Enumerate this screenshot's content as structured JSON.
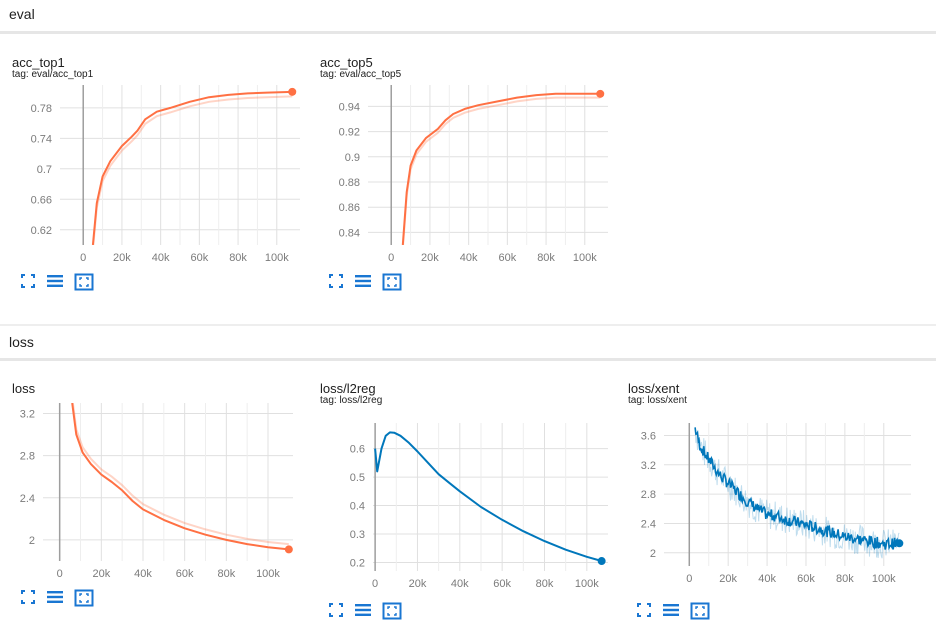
{
  "sections": [
    {
      "title": "eval"
    },
    {
      "title": "loss"
    }
  ],
  "colors": {
    "orange": "#ff7043",
    "blue": "#0077bb",
    "grid": "#e0e0e0",
    "axis": "#9e9e9e"
  },
  "toolbar_icons": [
    "expand-icon",
    "data-list-icon",
    "fit-domain-icon"
  ],
  "chart_data": [
    {
      "id": "acc_top1",
      "type": "line",
      "title": "acc_top1",
      "tag": "tag: eval/acc_top1",
      "color": "#ff7043",
      "ylim": [
        0.6,
        0.81
      ],
      "xlim": [
        -12000,
        112000
      ],
      "yticks": [
        0.62,
        0.66,
        0.7,
        0.74,
        0.78
      ],
      "ytick_labels": [
        "0.62",
        "0.66",
        "0.7",
        "0.74",
        "0.78"
      ],
      "xticks": [
        0,
        20000,
        40000,
        60000,
        80000,
        100000
      ],
      "xtick_labels": [
        "0",
        "20k",
        "40k",
        "60k",
        "80k",
        "100k"
      ],
      "raw_offset": -0.006,
      "series": [
        {
          "x": [
            5000,
            7000,
            10000,
            14000,
            20000,
            25000,
            28000,
            32000,
            38000,
            45000,
            55000,
            65000,
            75000,
            85000,
            95000,
            108000
          ],
          "y": [
            0.6,
            0.655,
            0.69,
            0.71,
            0.73,
            0.742,
            0.75,
            0.765,
            0.775,
            0.78,
            0.788,
            0.794,
            0.797,
            0.799,
            0.8,
            0.801
          ]
        }
      ]
    },
    {
      "id": "acc_top5",
      "type": "line",
      "title": "acc_top5",
      "tag": "tag: eval/acc_top5",
      "color": "#ff7043",
      "ylim": [
        0.83,
        0.957
      ],
      "xlim": [
        -12000,
        112000
      ],
      "yticks": [
        0.84,
        0.86,
        0.88,
        0.9,
        0.92,
        0.94
      ],
      "ytick_labels": [
        "0.84",
        "0.86",
        "0.88",
        "0.9",
        "0.92",
        "0.94"
      ],
      "xticks": [
        0,
        20000,
        40000,
        60000,
        80000,
        100000
      ],
      "xtick_labels": [
        "0",
        "20k",
        "40k",
        "60k",
        "80k",
        "100k"
      ],
      "raw_offset": -0.003,
      "series": [
        {
          "x": [
            6000,
            8000,
            10000,
            13000,
            18000,
            24000,
            28000,
            32000,
            38000,
            45000,
            55000,
            65000,
            75000,
            85000,
            95000,
            108000
          ],
          "y": [
            0.83,
            0.872,
            0.893,
            0.905,
            0.915,
            0.922,
            0.929,
            0.934,
            0.938,
            0.941,
            0.944,
            0.947,
            0.949,
            0.95,
            0.95,
            0.95
          ]
        }
      ]
    },
    {
      "id": "loss",
      "type": "line",
      "title": "loss",
      "tag": "",
      "color": "#ff7043",
      "ylim": [
        1.8,
        3.3
      ],
      "xlim": [
        -8000,
        112000
      ],
      "yticks": [
        2,
        2.4,
        2.8,
        3.2
      ],
      "ytick_labels": [
        "2",
        "2.4",
        "2.8",
        "3.2"
      ],
      "xticks": [
        0,
        20000,
        40000,
        60000,
        80000,
        100000
      ],
      "xtick_labels": [
        "0",
        "20k",
        "40k",
        "60k",
        "80k",
        "100k"
      ],
      "raw_offset": 0.05,
      "series": [
        {
          "x": [
            6000,
            8000,
            11000,
            15000,
            20000,
            25000,
            30000,
            35000,
            40000,
            50000,
            60000,
            70000,
            80000,
            90000,
            100000,
            110000
          ],
          "y": [
            3.3,
            3.0,
            2.83,
            2.72,
            2.62,
            2.55,
            2.47,
            2.37,
            2.29,
            2.19,
            2.11,
            2.05,
            2.0,
            1.96,
            1.93,
            1.91
          ]
        }
      ]
    },
    {
      "id": "loss_l2reg",
      "type": "line",
      "title": "loss/l2reg",
      "tag": "tag: loss/l2reg",
      "color": "#0077bb",
      "ylim": [
        0.17,
        0.69
      ],
      "xlim": [
        -1000,
        110000
      ],
      "yticks": [
        0.2,
        0.3,
        0.4,
        0.5,
        0.6
      ],
      "ytick_labels": [
        "0.2",
        "0.3",
        "0.4",
        "0.5",
        "0.6"
      ],
      "xticks": [
        0,
        20000,
        40000,
        60000,
        80000,
        100000
      ],
      "xtick_labels": [
        "0",
        "20k",
        "40k",
        "60k",
        "80k",
        "100k"
      ],
      "raw_offset": 0,
      "series": [
        {
          "x": [
            0,
            1000,
            3000,
            5000,
            7000,
            9000,
            12000,
            16000,
            20000,
            25000,
            30000,
            35000,
            40000,
            50000,
            60000,
            70000,
            80000,
            90000,
            100000,
            107000
          ],
          "y": [
            0.6,
            0.52,
            0.6,
            0.645,
            0.657,
            0.656,
            0.645,
            0.62,
            0.59,
            0.55,
            0.51,
            0.48,
            0.45,
            0.395,
            0.35,
            0.31,
            0.275,
            0.245,
            0.22,
            0.205
          ]
        }
      ]
    },
    {
      "id": "loss_xent",
      "type": "line",
      "title": "loss/xent",
      "tag": "tag: loss/xent",
      "color": "#0077bb",
      "ylim": [
        1.82,
        3.77
      ],
      "xlim": [
        -13000,
        114000
      ],
      "yticks": [
        2,
        2.4,
        2.8,
        3.2,
        3.6
      ],
      "ytick_labels": [
        "2",
        "2.4",
        "2.8",
        "3.2",
        "3.6"
      ],
      "xticks": [
        0,
        20000,
        40000,
        60000,
        80000,
        100000
      ],
      "xtick_labels": [
        "0",
        "20k",
        "40k",
        "60k",
        "80k",
        "100k"
      ],
      "raw_offset": 0,
      "noisy": true,
      "series": [
        {
          "x": [
            3000,
            5000,
            8000,
            12000,
            16000,
            20000,
            25000,
            30000,
            35000,
            40000,
            45000,
            50000,
            60000,
            70000,
            80000,
            90000,
            100000,
            108000
          ],
          "y": [
            3.7,
            3.5,
            3.35,
            3.2,
            3.05,
            2.95,
            2.82,
            2.7,
            2.6,
            2.52,
            2.5,
            2.45,
            2.38,
            2.3,
            2.22,
            2.17,
            2.12,
            2.13
          ]
        }
      ]
    }
  ]
}
